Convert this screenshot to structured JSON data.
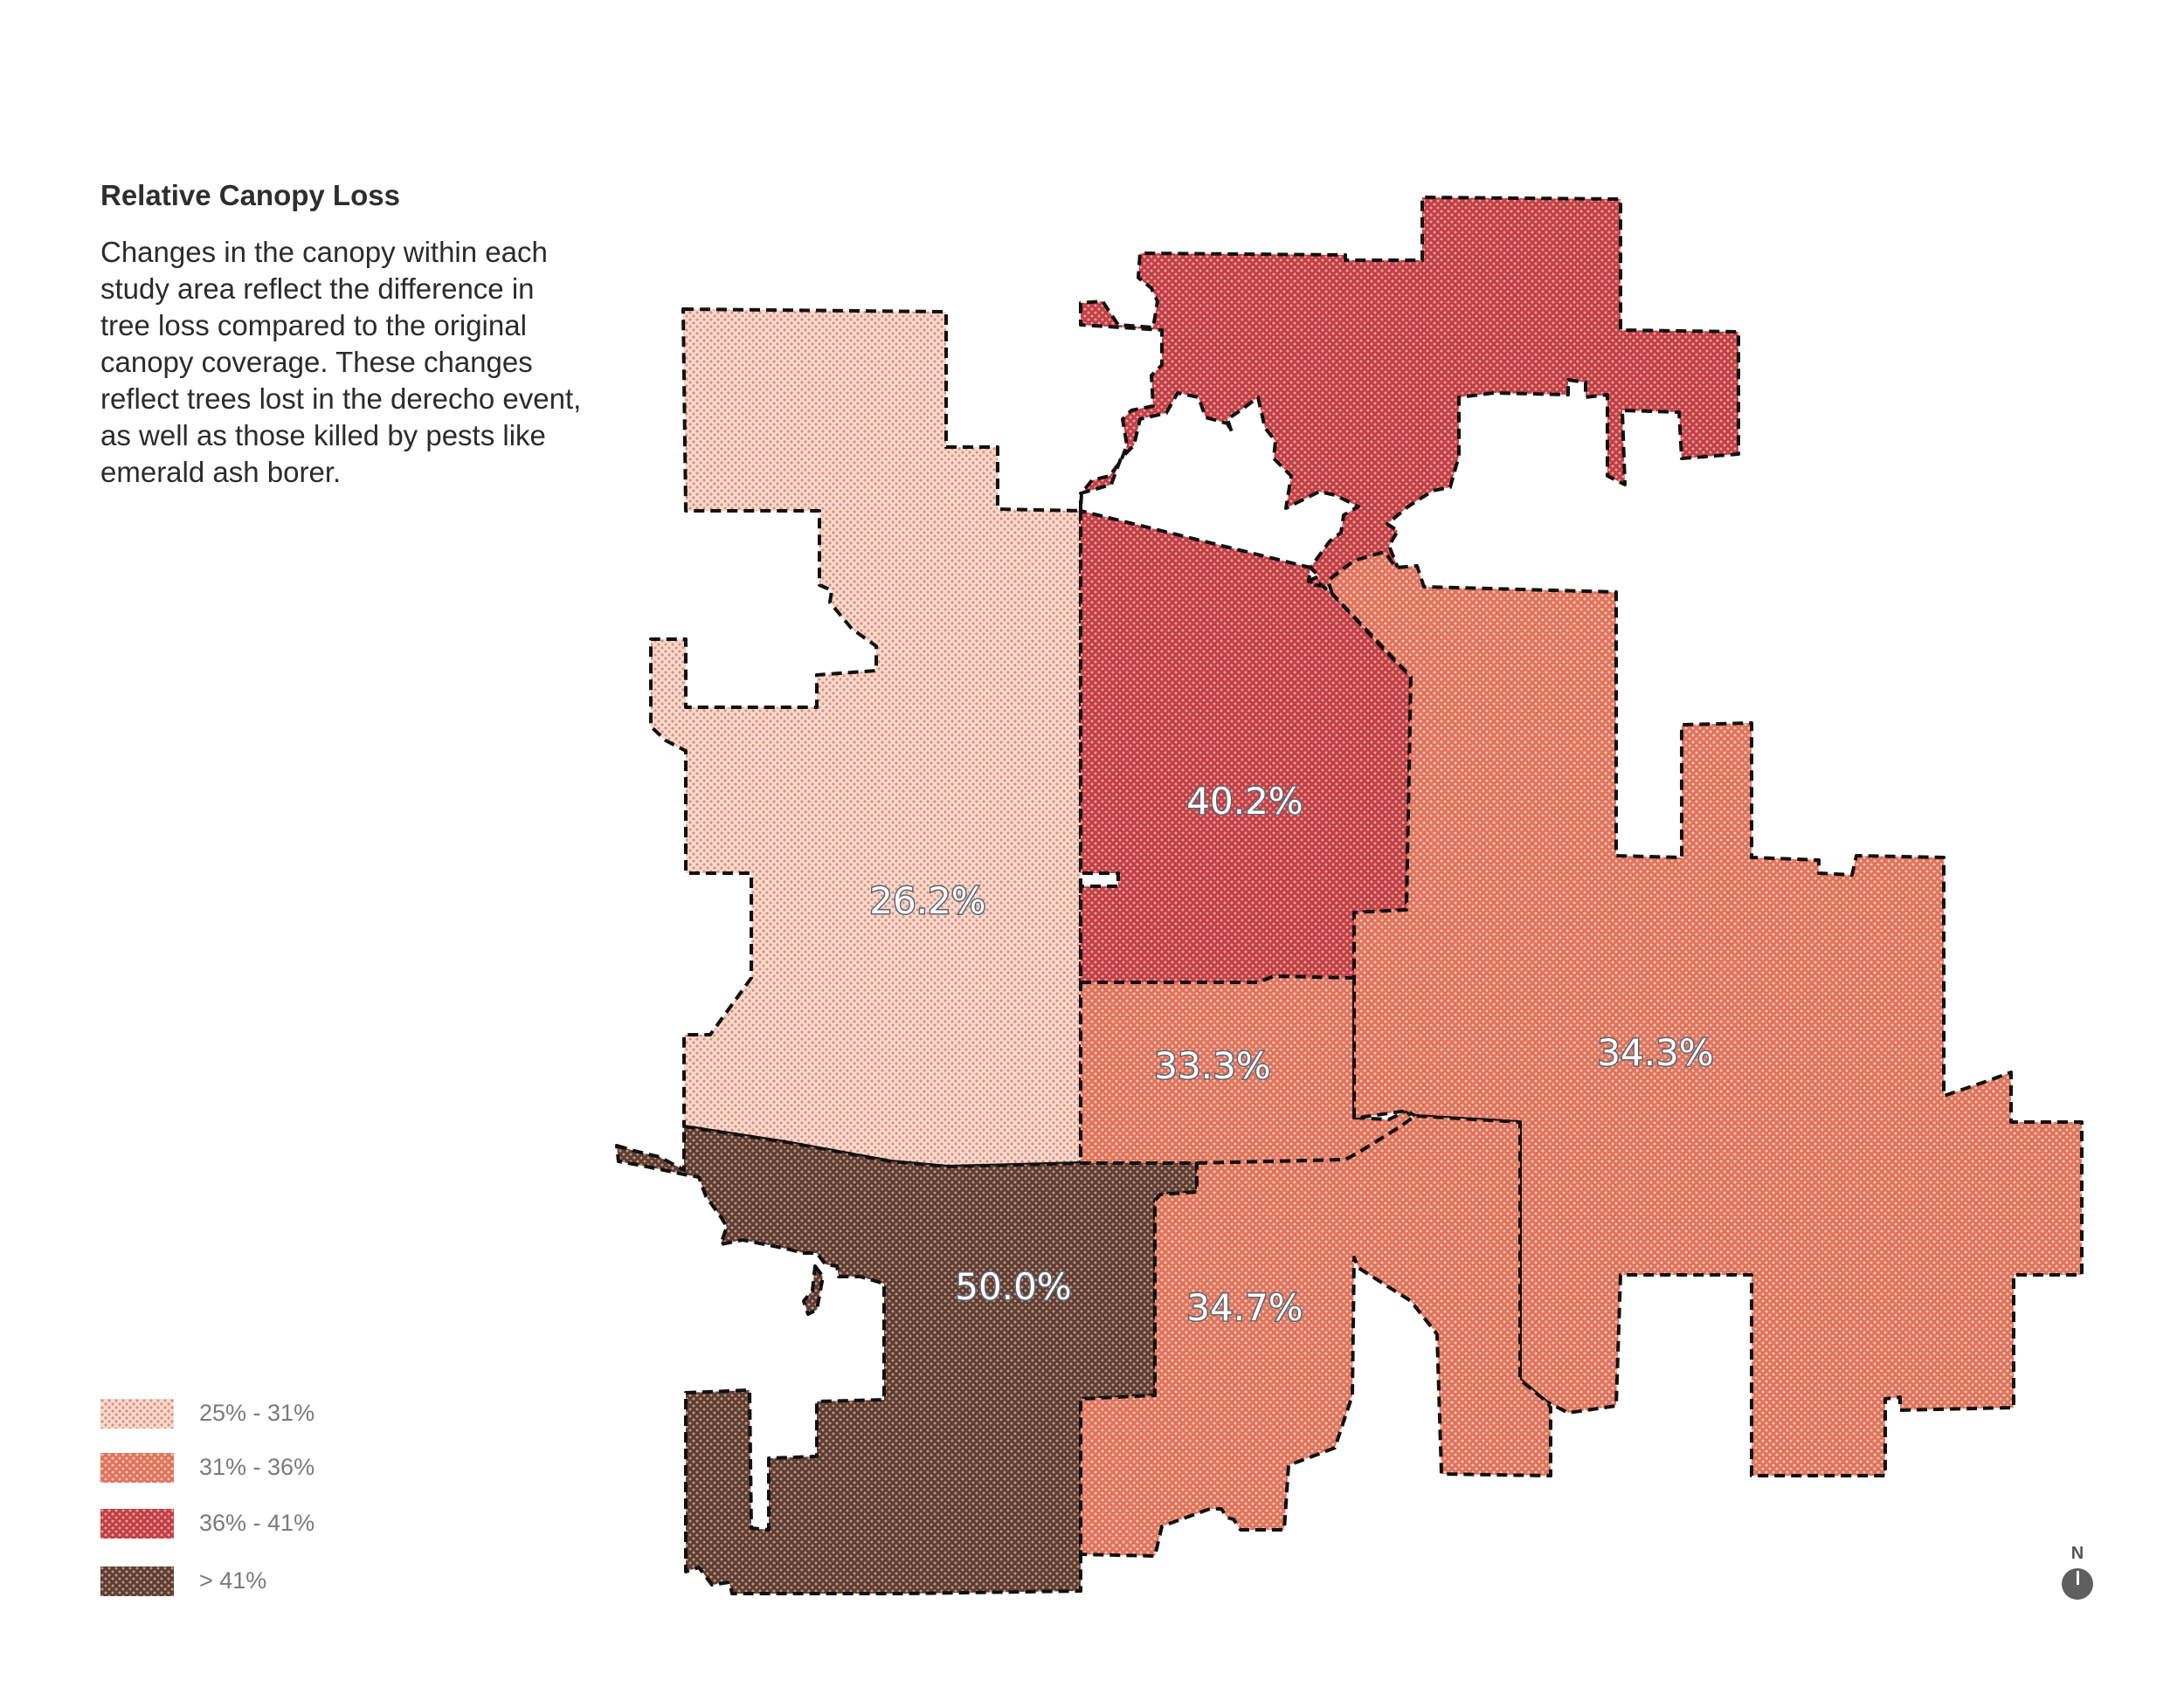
{
  "panel": {
    "title": "Relative Canopy Loss",
    "description": "Changes in the canopy within each study area reflect the difference in tree loss compared to the original canopy coverage. These changes reflect trees lost in the derecho event, as well as those killed by pests like emerald ash borer."
  },
  "legend": [
    {
      "label": "25% - 31%",
      "color": "#ecc2b2",
      "key": "low"
    },
    {
      "label": "31% - 36%",
      "color": "#e07862",
      "key": "mid"
    },
    {
      "label": "36% - 41%",
      "color": "#c9464a",
      "key": "high"
    },
    {
      "label": "> 41%",
      "color": "#6d4a3c",
      "key": "max"
    }
  ],
  "map": {
    "regions": [
      {
        "name": "region-26",
        "label": "26.2%",
        "value": 26.2,
        "class": "25% - 31%"
      },
      {
        "name": "region-40",
        "label": "40.2%",
        "value": 40.2,
        "class": "36% - 41%"
      },
      {
        "name": "region-33",
        "label": "33.3%",
        "value": 33.3,
        "class": "31% - 36%"
      },
      {
        "name": "region-34-3",
        "label": "34.3%",
        "value": 34.3,
        "class": "31% - 36%"
      },
      {
        "name": "region-50",
        "label": "50.0%",
        "value": 50.0,
        "class": "> 41%"
      },
      {
        "name": "region-34-7",
        "label": "34.7%",
        "value": 34.7,
        "class": "31% - 36%"
      }
    ],
    "north_label": "N"
  }
}
